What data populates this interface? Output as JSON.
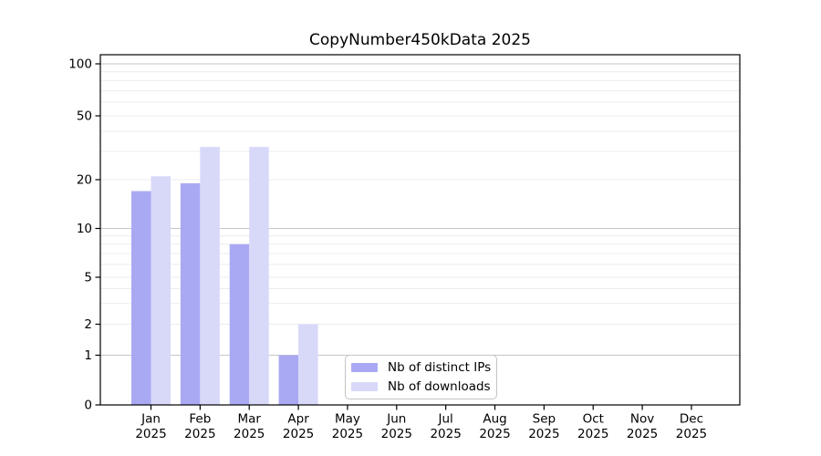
{
  "chart_data": {
    "type": "bar",
    "title": "CopyNumber450kData 2025",
    "categories": [
      "Jan",
      "Feb",
      "Mar",
      "Apr",
      "May",
      "Jun",
      "Jul",
      "Aug",
      "Sep",
      "Oct",
      "Nov",
      "Dec"
    ],
    "category_year": "2025",
    "series": [
      {
        "name": "Nb of distinct IPs",
        "color": "#a9a9f3",
        "values": [
          17,
          19,
          8,
          1,
          0,
          0,
          0,
          0,
          0,
          0,
          0,
          0
        ]
      },
      {
        "name": "Nb of downloads",
        "color": "#d8d8f9",
        "values": [
          21,
          32,
          32,
          2,
          0,
          0,
          0,
          0,
          0,
          0,
          0,
          0
        ]
      }
    ],
    "yticks": [
      0,
      1,
      2,
      5,
      10,
      20,
      50,
      100
    ],
    "yscale": "log-like",
    "ylim": [
      0,
      113
    ],
    "grid": "horizontal",
    "grid_minor_values": [
      2,
      3,
      4,
      5,
      6,
      7,
      8,
      9,
      20,
      30,
      40,
      50,
      60,
      70,
      80,
      90
    ],
    "grid_major_values": [
      1,
      10,
      100
    ],
    "grid_minor_color": "#ececec",
    "grid_major_color": "#c6c6c6",
    "axis_color": "#000000",
    "legend_position": "bottom-center"
  }
}
